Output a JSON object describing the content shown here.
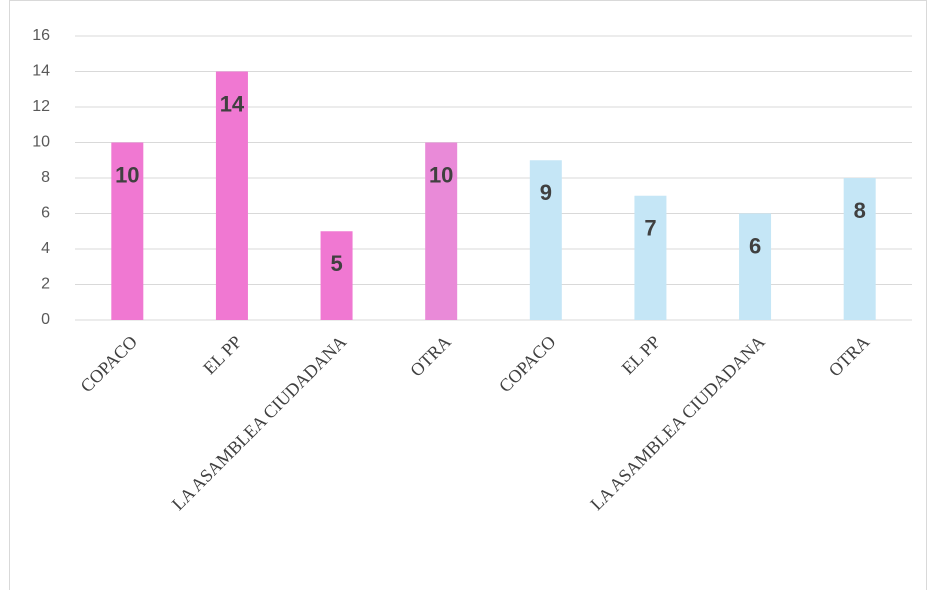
{
  "chart_data": {
    "type": "bar",
    "categories": [
      "COPACO",
      "EL PP",
      "LA ASAMBLEA CIUDADANA",
      "OTRA",
      "COPACO",
      "EL PP",
      "LA ASAMBLEA CIUDADANA",
      "OTRA"
    ],
    "values": [
      10,
      14,
      5,
      10,
      9,
      7,
      6,
      8
    ],
    "colors": [
      "#f078d2",
      "#f078d2",
      "#f078d2",
      "#e98ad8",
      "#c5e6f6",
      "#c5e6f6",
      "#c5e6f6",
      "#c5e6f6"
    ],
    "ylim": [
      0,
      16
    ],
    "yticks": [
      0,
      2,
      4,
      6,
      8,
      10,
      12,
      14,
      16
    ],
    "grid": true
  }
}
